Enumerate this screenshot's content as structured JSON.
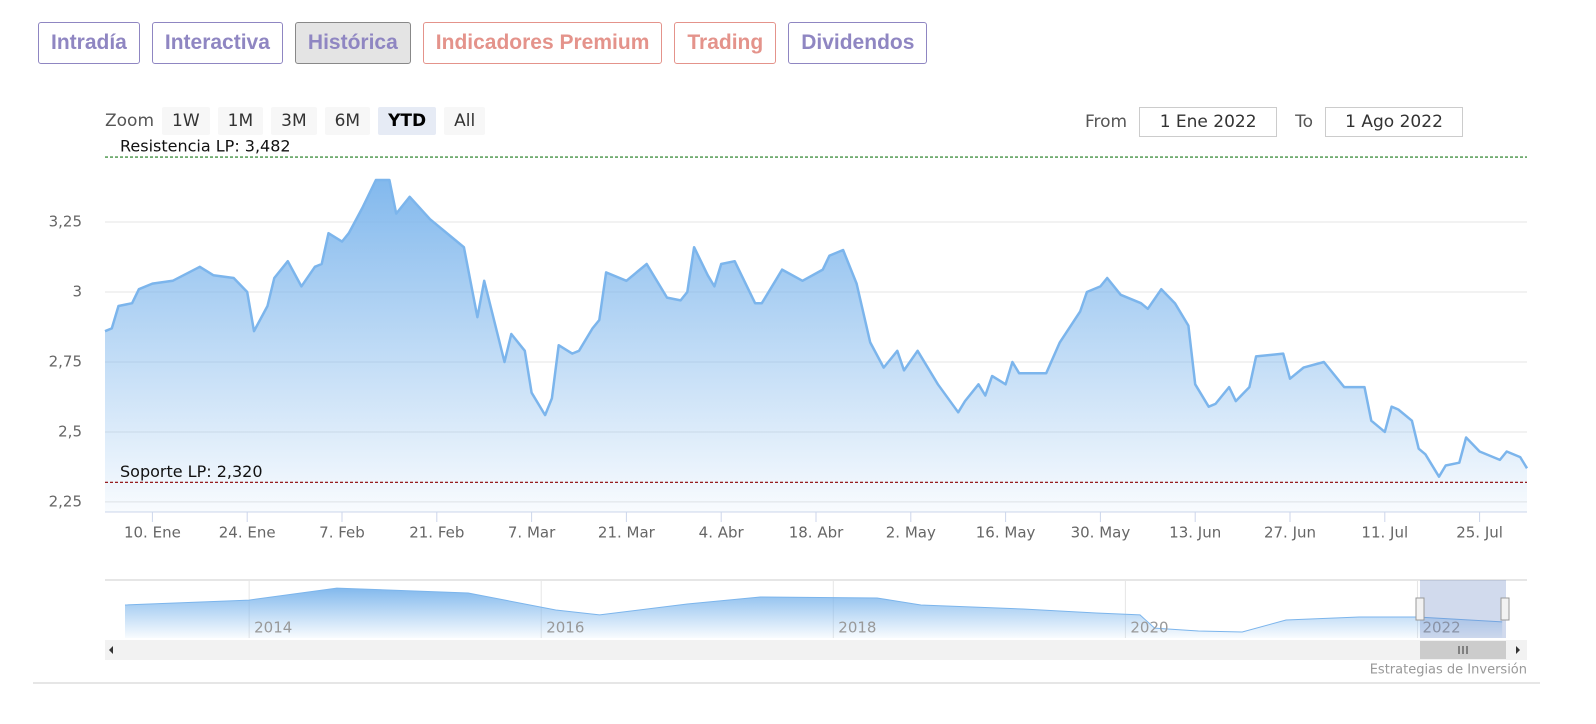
{
  "tabs": [
    {
      "label": "Intradía",
      "color": "#8f86c2"
    },
    {
      "label": "Interactiva",
      "color": "#8f86c2"
    },
    {
      "label": "Histórica",
      "color": "#8f86c2",
      "active": true
    },
    {
      "label": "Indicadores Premium",
      "color": "#e4938b"
    },
    {
      "label": "Trading",
      "color": "#e4938b"
    },
    {
      "label": "Dividendos",
      "color": "#8f86c2"
    }
  ],
  "zoom": {
    "label": "Zoom",
    "buttons": [
      {
        "label": "1W"
      },
      {
        "label": "1M"
      },
      {
        "label": "3M"
      },
      {
        "label": "6M"
      },
      {
        "label": "YTD",
        "active": true
      },
      {
        "label": "All"
      }
    ]
  },
  "range": {
    "from_label": "From",
    "from": "1 Ene 2022",
    "to_label": "To",
    "to": "1 Ago 2022"
  },
  "chart_data": {
    "type": "area",
    "color": "#7cb5ec",
    "grid": true,
    "x": [
      "2022-01-03",
      "2022-01-04",
      "2022-01-05",
      "2022-01-07",
      "2022-01-08",
      "2022-01-10",
      "2022-01-13",
      "2022-01-17",
      "2022-01-19",
      "2022-01-22",
      "2022-01-24",
      "2022-01-25",
      "2022-01-27",
      "2022-01-28",
      "2022-01-30",
      "2022-02-01",
      "2022-02-03",
      "2022-02-04",
      "2022-02-05",
      "2022-02-07",
      "2022-02-08",
      "2022-02-10",
      "2022-02-12",
      "2022-02-14",
      "2022-02-15",
      "2022-02-17",
      "2022-02-20",
      "2022-02-21",
      "2022-02-23",
      "2022-02-25",
      "2022-02-27",
      "2022-02-28",
      "2022-03-03",
      "2022-03-04",
      "2022-03-06",
      "2022-03-07",
      "2022-03-09",
      "2022-03-10",
      "2022-03-11",
      "2022-03-13",
      "2022-03-14",
      "2022-03-16",
      "2022-03-17",
      "2022-03-18",
      "2022-03-21",
      "2022-03-24",
      "2022-03-27",
      "2022-03-29",
      "2022-03-30",
      "2022-03-31",
      "2022-04-02",
      "2022-04-03",
      "2022-04-04",
      "2022-04-06",
      "2022-04-07",
      "2022-04-09",
      "2022-04-10",
      "2022-04-12",
      "2022-04-13",
      "2022-04-16",
      "2022-04-19",
      "2022-04-20",
      "2022-04-22",
      "2022-04-24",
      "2022-04-26",
      "2022-04-28",
      "2022-04-30",
      "2022-05-01",
      "2022-05-03",
      "2022-05-06",
      "2022-05-09",
      "2022-05-10",
      "2022-05-12",
      "2022-05-13",
      "2022-05-14",
      "2022-05-16",
      "2022-05-17",
      "2022-05-18",
      "2022-05-22",
      "2022-05-24",
      "2022-05-27",
      "2022-05-28",
      "2022-05-30",
      "2022-05-31",
      "2022-06-02",
      "2022-06-05",
      "2022-06-06",
      "2022-06-08",
      "2022-06-10",
      "2022-06-12",
      "2022-06-13",
      "2022-06-15",
      "2022-06-16",
      "2022-06-18",
      "2022-06-19",
      "2022-06-21",
      "2022-06-22",
      "2022-06-26",
      "2022-06-27",
      "2022-06-29",
      "2022-07-02",
      "2022-07-05",
      "2022-07-08",
      "2022-07-09",
      "2022-07-11",
      "2022-07-12",
      "2022-07-13",
      "2022-07-15",
      "2022-07-16",
      "2022-07-17",
      "2022-07-19",
      "2022-07-20",
      "2022-07-22",
      "2022-07-23",
      "2022-07-25",
      "2022-07-28",
      "2022-07-29",
      "2022-07-31",
      "2022-08-01"
    ],
    "values": [
      2.86,
      2.87,
      2.95,
      2.96,
      3.01,
      3.03,
      3.04,
      3.09,
      3.06,
      3.05,
      3.0,
      2.86,
      2.95,
      3.05,
      3.11,
      3.02,
      3.09,
      3.1,
      3.21,
      3.18,
      3.21,
      3.3,
      3.4,
      3.4,
      3.28,
      3.34,
      3.26,
      3.24,
      3.2,
      3.16,
      2.91,
      3.04,
      2.75,
      2.85,
      2.79,
      2.64,
      2.56,
      2.62,
      2.81,
      2.78,
      2.79,
      2.87,
      2.9,
      3.07,
      3.04,
      3.1,
      2.98,
      2.97,
      3.0,
      3.16,
      3.06,
      3.02,
      3.1,
      3.11,
      3.06,
      2.96,
      2.96,
      3.04,
      3.08,
      3.04,
      3.08,
      3.13,
      3.15,
      3.03,
      2.82,
      2.73,
      2.79,
      2.72,
      2.79,
      2.67,
      2.57,
      2.61,
      2.67,
      2.63,
      2.7,
      2.67,
      2.75,
      2.71,
      2.71,
      2.82,
      2.93,
      3.0,
      3.02,
      3.05,
      2.99,
      2.96,
      2.94,
      3.01,
      2.96,
      2.88,
      2.67,
      2.59,
      2.6,
      2.66,
      2.61,
      2.66,
      2.77,
      2.78,
      2.69,
      2.73,
      2.75,
      2.66,
      2.66,
      2.54,
      2.5,
      2.59,
      2.58,
      2.54,
      2.44,
      2.42,
      2.34,
      2.38,
      2.39,
      2.48,
      2.43,
      2.4,
      2.43,
      2.41,
      2.37
    ],
    "xlim": [
      "2022-01-03",
      "2022-08-01"
    ],
    "xticks": [
      {
        "value": "2022-01-10",
        "label": "10. Ene"
      },
      {
        "value": "2022-01-24",
        "label": "24. Ene"
      },
      {
        "value": "2022-02-07",
        "label": "7. Feb"
      },
      {
        "value": "2022-02-21",
        "label": "21. Feb"
      },
      {
        "value": "2022-03-07",
        "label": "7. Mar"
      },
      {
        "value": "2022-03-21",
        "label": "21. Mar"
      },
      {
        "value": "2022-04-04",
        "label": "4. Abr"
      },
      {
        "value": "2022-04-18",
        "label": "18. Abr"
      },
      {
        "value": "2022-05-02",
        "label": "2. May"
      },
      {
        "value": "2022-05-16",
        "label": "16. May"
      },
      {
        "value": "2022-05-30",
        "label": "30. May"
      },
      {
        "value": "2022-06-13",
        "label": "13. Jun"
      },
      {
        "value": "2022-06-27",
        "label": "27. Jun"
      },
      {
        "value": "2022-07-11",
        "label": "11. Jul"
      },
      {
        "value": "2022-07-25",
        "label": "25. Jul"
      }
    ],
    "ylim": [
      2.214,
      3.5
    ],
    "yticks": [
      {
        "value": 2.25,
        "label": "2,25"
      },
      {
        "value": 2.5,
        "label": "2,5"
      },
      {
        "value": 2.75,
        "label": "2,75"
      },
      3,
      {
        "value": 3.25,
        "label": "3,25"
      }
    ],
    "plot_lines": [
      {
        "label": "Resistencia LP: 3,482",
        "value": 3.482,
        "color": "#1a7a1a"
      },
      {
        "label": "Soporte LP: 2,320",
        "value": 2.32,
        "color": "#8b0000"
      }
    ],
    "navigator": {
      "x": [
        2013.15,
        2014,
        2014.6,
        2015.5,
        2016.1,
        2016.4,
        2017,
        2017.5,
        2018.3,
        2018.6,
        2019.3,
        2019.8,
        2020.1,
        2020.2,
        2020.5,
        2020.8,
        2021.1,
        2021.6,
        2022,
        2022.58
      ],
      "values": [
        3.76,
        4.1,
        4.92,
        4.58,
        3.42,
        3.08,
        3.83,
        4.31,
        4.24,
        3.76,
        3.49,
        3.21,
        3.08,
        2.18,
        1.98,
        1.91,
        2.73,
        2.94,
        2.94,
        2.6
      ],
      "xlim": [
        2013.15,
        2022.75
      ],
      "ylim": [
        1.5,
        5.2
      ],
      "xticks": [
        2014,
        2016,
        2018,
        2020,
        2022
      ]
    }
  },
  "credit": "Estrategias de Inversión"
}
